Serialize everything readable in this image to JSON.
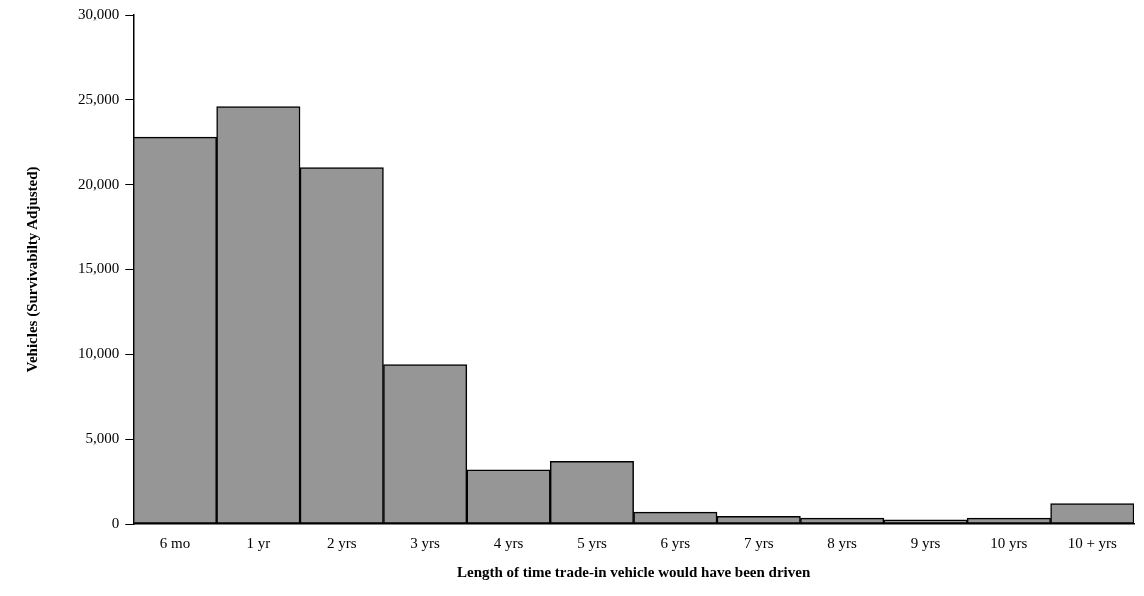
{
  "chart_data": {
    "type": "bar",
    "xlabel": "Length of time trade-in vehicle would have been driven",
    "ylabel": "Vehicles (Survivabilty Adjusted)",
    "categories": [
      "6 mo",
      "1 yr",
      "2 yrs",
      "3 yrs",
      "4 yrs",
      "5 yrs",
      "6 yrs",
      "7 yrs",
      "8 yrs",
      "9 yrs",
      "10 yrs",
      "10 + yrs"
    ],
    "values": [
      22800,
      24600,
      21000,
      9400,
      3200,
      3700,
      700,
      450,
      350,
      250,
      350,
      1200
    ],
    "color": "#969696",
    "ylim": [
      0,
      30000
    ],
    "yticks": [
      {
        "value": 0,
        "label": "0"
      },
      {
        "value": 5000,
        "label": "5,000"
      },
      {
        "value": 10000,
        "label": "10,000"
      },
      {
        "value": 15000,
        "label": "15,000"
      },
      {
        "value": 20000,
        "label": "20,000"
      },
      {
        "value": 25000,
        "label": "25,000"
      },
      {
        "value": 30000,
        "label": "30,000"
      }
    ],
    "grid": false,
    "legend": false
  }
}
